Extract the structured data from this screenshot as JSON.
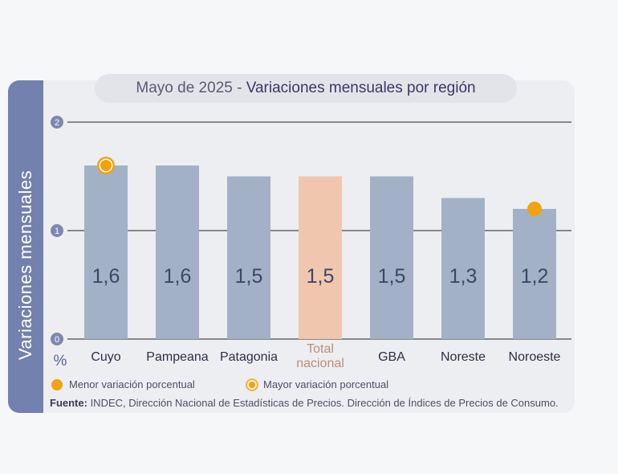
{
  "title": {
    "prefix": "Mayo de 2025",
    "separator": " - ",
    "main": "Variaciones mensuales por región"
  },
  "ylabel": "Variaciones  mensuales",
  "unit": "%",
  "legend": {
    "min_label": "Menor variación porcentual",
    "max_label": "Mayor variación porcentual"
  },
  "source": {
    "label": "Fuente:",
    "text": " INDEC, Dirección Nacional de Estadísticas de Precios. Dirección de Índices de Precios de Consumo."
  },
  "colors": {
    "bar": "#a3b1c6",
    "highlight_bar": "#f0c7ae",
    "marker": "#f2a20d",
    "side_panel": "#7281ad",
    "gridline": "#86868c"
  },
  "chart_data": {
    "type": "bar",
    "categories": [
      "Cuyo",
      "Pampeana",
      "Patagonia",
      "Total nacional",
      "GBA",
      "Noreste",
      "Noroeste"
    ],
    "values": [
      1.6,
      1.6,
      1.5,
      1.5,
      1.5,
      1.3,
      1.2
    ],
    "value_labels": [
      "1,6",
      "1,6",
      "1,5",
      "1,5",
      "1,5",
      "1,3",
      "1,2"
    ],
    "highlight_category": "Total nacional",
    "max_marker_category": "Cuyo",
    "min_marker_category": "Noroeste",
    "yticks": [
      0,
      1,
      2
    ],
    "ylim": [
      0,
      2
    ],
    "grid": true
  }
}
